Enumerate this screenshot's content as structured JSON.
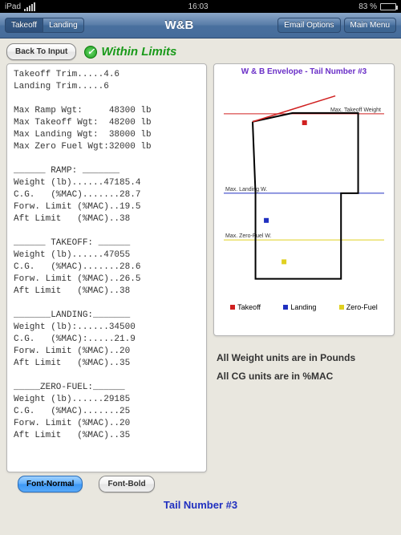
{
  "statusbar": {
    "device": "iPad",
    "time": "16:03",
    "battery_pct": "83 %"
  },
  "navbar": {
    "seg": [
      "Takeoff",
      "Landing"
    ],
    "seg_active": 0,
    "title": "W&B",
    "right": [
      "Email Options",
      "Main Menu"
    ]
  },
  "back_label": "Back To Input",
  "status_text": "Within Limits",
  "text_report": "Takeoff Trim.....4.6\nLanding Trim.....6\n\nMax Ramp Wgt:     48300 lb\nMax Takeoff Wgt:  48200 lb\nMax Landing Wgt:  38000 lb\nMax Zero Fuel Wgt:32000 lb\n\n______ RAMP: _______\nWeight (lb)......47185.4\nC.G.   (%MAC).......28.7\nForw. Limit (%MAC)..19.5\nAft Limit   (%MAC)..38\n\n______ TAKEOFF: ______\nWeight (lb)......47055\nC.G.   (%MAC).......28.6\nForw. Limit (%MAC)..26.5\nAft Limit   (%MAC)..38\n\n_______LANDING:_______\nWeight (lb):......34500\nC.G.   (%MAC):.....21.9\nForw. Limit (%MAC)..20\nAft Limit   (%MAC)..35\n\n_____ZERO-FUEL:______\nWeight (lb)......29185\nC.G.   (%MAC).......25\nForw. Limit (%MAC)..20\nAft Limit   (%MAC)..35",
  "chart": {
    "title": "W & B Envelope - Tail Number #3",
    "cg_range": [
      15,
      42
    ],
    "wt_range": [
      25000,
      52000
    ],
    "lines": {
      "max_takeoff": {
        "label": "Max. Takeoff Weight",
        "wt": 48200,
        "color": "#d02020"
      },
      "max_landing": {
        "label": "Max. Landing W.",
        "wt": 38000,
        "color": "#2030c0"
      },
      "max_zerofuel": {
        "label": "Max. Zero-Fuel W.",
        "wt": 32000,
        "color": "#e0d020"
      }
    },
    "envelope": [
      [
        19.5,
        47185
      ],
      [
        26.5,
        48300
      ],
      [
        38,
        48300
      ],
      [
        38,
        38000
      ],
      [
        35,
        38000
      ],
      [
        35,
        27000
      ],
      [
        20,
        27000
      ],
      [
        20,
        38000
      ],
      [
        19.5,
        47185
      ]
    ],
    "red_segment": [
      [
        19.5,
        47185
      ],
      [
        34,
        50500
      ]
    ],
    "points": {
      "takeoff": {
        "cg": 28.6,
        "wt": 47055,
        "color": "#d02020",
        "label": "Takeoff"
      },
      "landing": {
        "cg": 21.9,
        "wt": 34500,
        "color": "#2030c0",
        "label": "Landing"
      },
      "zero_fuel": {
        "cg": 25.0,
        "wt": 29185,
        "color": "#e0d020",
        "label": "Zero-Fuel"
      }
    },
    "envelope_color": "#000000",
    "background": "#ffffff"
  },
  "units_note": {
    "l1": "All Weight units are in Pounds",
    "l2": "All CG units are in %MAC"
  },
  "font_buttons": {
    "normal": "Font-Normal",
    "bold": "Font-Bold"
  },
  "footer": "Tail Number #3"
}
